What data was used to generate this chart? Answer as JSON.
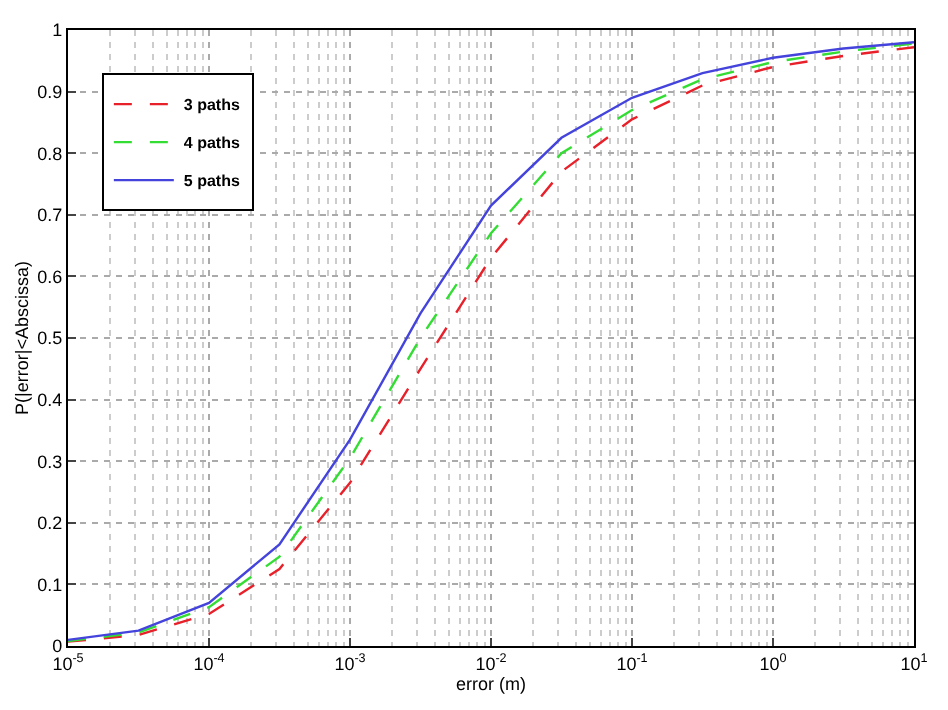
{
  "chart_data": {
    "type": "line",
    "xlabel": "error (m)",
    "ylabel": "P(|error|<Abscissa)",
    "log": "x",
    "x": [
      1e-05,
      3.16e-05,
      0.0001,
      0.000316,
      0.001,
      0.00316,
      0.01,
      0.0316,
      0.1,
      0.316,
      1,
      3.16,
      10
    ],
    "series": [
      {
        "name": "3 paths",
        "color": "#e8202a",
        "line_style": "dashed",
        "values": [
          0.007,
          0.018,
          0.052,
          0.125,
          0.265,
          0.45,
          0.63,
          0.77,
          0.855,
          0.91,
          0.94,
          0.958,
          0.972
        ]
      },
      {
        "name": "4 paths",
        "color": "#33dd33",
        "line_style": "dashed",
        "values": [
          0.008,
          0.022,
          0.063,
          0.145,
          0.305,
          0.5,
          0.67,
          0.8,
          0.87,
          0.92,
          0.948,
          0.965,
          0.978
        ]
      },
      {
        "name": "5 paths",
        "color": "#4444dd",
        "line_style": "solid",
        "values": [
          0.01,
          0.025,
          0.07,
          0.165,
          0.335,
          0.54,
          0.715,
          0.825,
          0.89,
          0.93,
          0.955,
          0.97,
          0.98
        ]
      }
    ],
    "xlim": [
      1e-05,
      10
    ],
    "xticks": [
      {
        "value": 1e-05,
        "label": "10$^{-5}$"
      },
      {
        "value": 0.0001,
        "label": "10$^{-4}$"
      },
      {
        "value": 0.001,
        "label": "10$^{-3}$"
      },
      {
        "value": 0.01,
        "label": "10$^{-2}$"
      },
      {
        "value": 0.1,
        "label": "10$^{-1}$"
      },
      {
        "value": 1,
        "label": "10$^{0}$"
      },
      {
        "value": 10,
        "label": "10$^{1}$"
      }
    ],
    "ylim": [
      0,
      1
    ],
    "yticks": [
      0,
      0.1,
      0.2,
      0.3,
      0.4,
      0.5,
      0.6,
      0.7,
      0.8,
      0.9,
      1
    ],
    "grid": true,
    "legend": "top left",
    "marker": "none"
  }
}
